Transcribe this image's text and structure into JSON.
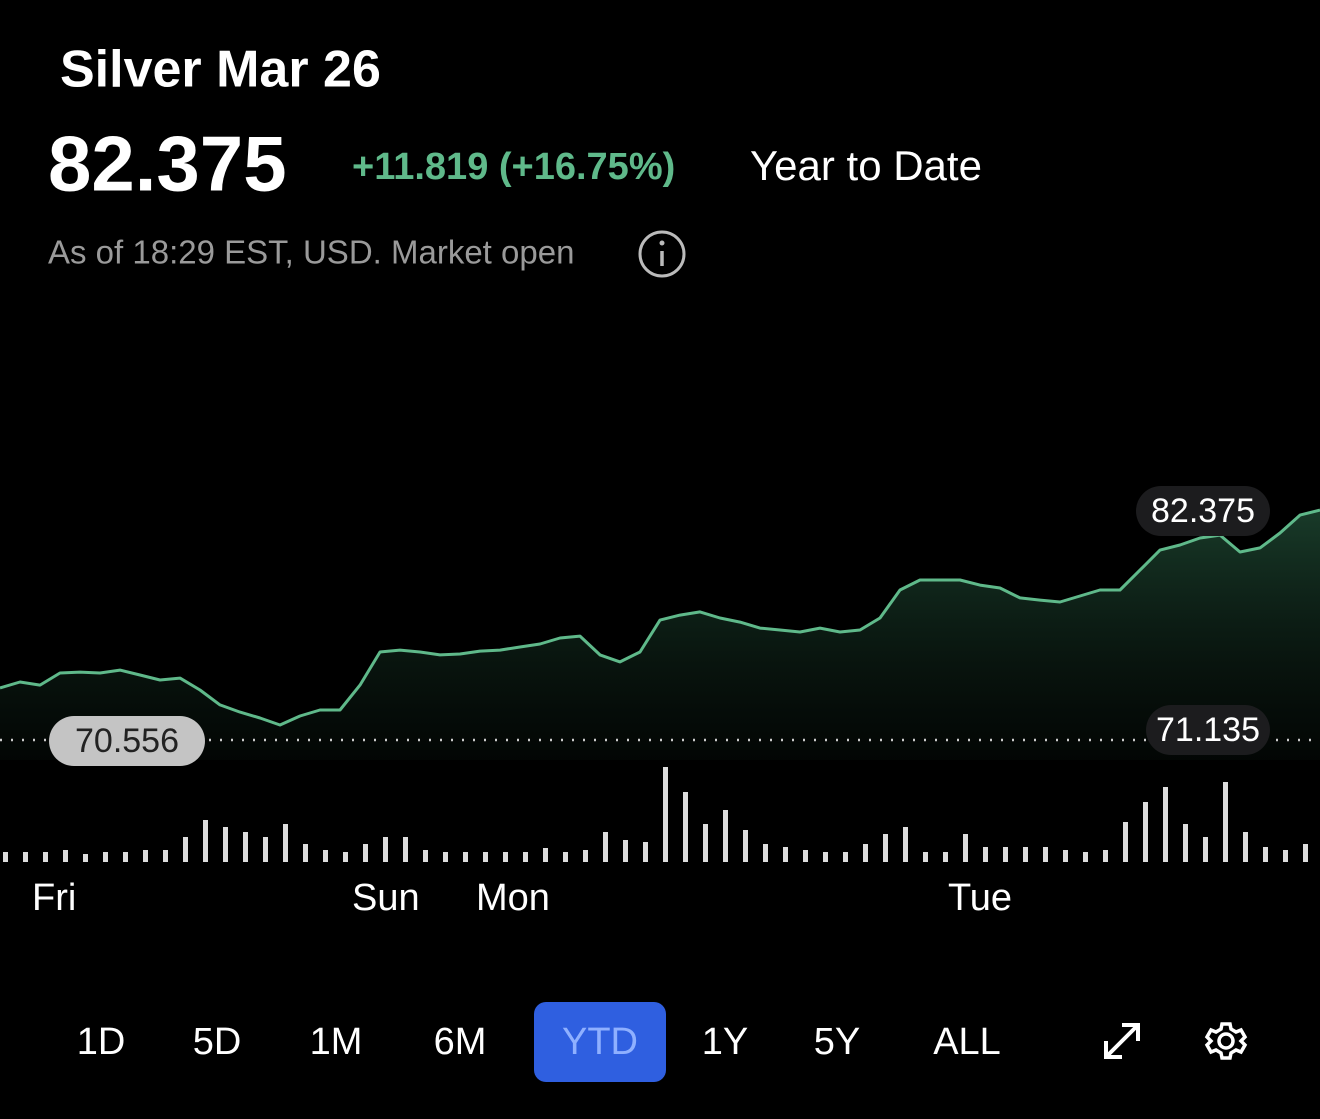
{
  "header": {
    "title": "Silver Mar 26",
    "price": "82.375",
    "change": "+11.819 (+16.75%)",
    "period": "Year to Date",
    "note": "As of 18:29 EST, USD. Market open"
  },
  "chart_data": {
    "type": "line",
    "color": "#5fb98a",
    "ylim": [
      69.53,
      84.95
    ],
    "series": [
      {
        "name": "Silver Mar 26",
        "color": "#5fb98a",
        "values": [
          73.23,
          73.54,
          73.38,
          74.0,
          74.05,
          74.0,
          74.15,
          73.9,
          73.64,
          73.74,
          73.13,
          72.36,
          71.99,
          71.69,
          71.33,
          71.79,
          72.1,
          72.1,
          73.38,
          75.08,
          75.18,
          75.08,
          74.93,
          74.98,
          75.13,
          75.18,
          75.34,
          75.49,
          75.8,
          75.9,
          74.93,
          74.57,
          75.08,
          76.72,
          76.98,
          77.14,
          76.83,
          76.62,
          76.31,
          76.21,
          76.11,
          76.31,
          76.11,
          76.21,
          76.83,
          78.27,
          78.78,
          78.78,
          78.78,
          78.52,
          78.37,
          77.86,
          77.75,
          77.65,
          77.96,
          78.27,
          78.27,
          79.29,
          80.32,
          80.58,
          80.94,
          81.09,
          80.22,
          80.43,
          81.2,
          82.12,
          82.375
        ]
      }
    ],
    "previous_close": 70.556,
    "low_label": 71.135,
    "last_label": 82.375,
    "volume": {
      "color": "#dddddd",
      "ylim": [
        0,
        100
      ],
      "values": [
        10,
        10,
        10,
        12,
        8,
        10,
        10,
        12,
        12,
        25,
        42,
        35,
        30,
        25,
        38,
        18,
        12,
        10,
        18,
        25,
        25,
        12,
        10,
        10,
        10,
        10,
        10,
        14,
        10,
        12,
        30,
        22,
        20,
        95,
        70,
        38,
        52,
        32,
        18,
        15,
        12,
        10,
        10,
        18,
        28,
        35,
        10,
        10,
        28,
        15,
        15,
        15,
        15,
        12,
        10,
        12,
        40,
        60,
        75,
        38,
        25,
        80,
        30,
        15,
        12,
        18
      ]
    },
    "x_labels": [
      "Fri",
      "Sun",
      "Mon",
      "Tue"
    ]
  },
  "ranges": [
    "1D",
    "5D",
    "1M",
    "6M",
    "YTD",
    "1Y",
    "5Y",
    "ALL"
  ],
  "selected_range": "YTD"
}
